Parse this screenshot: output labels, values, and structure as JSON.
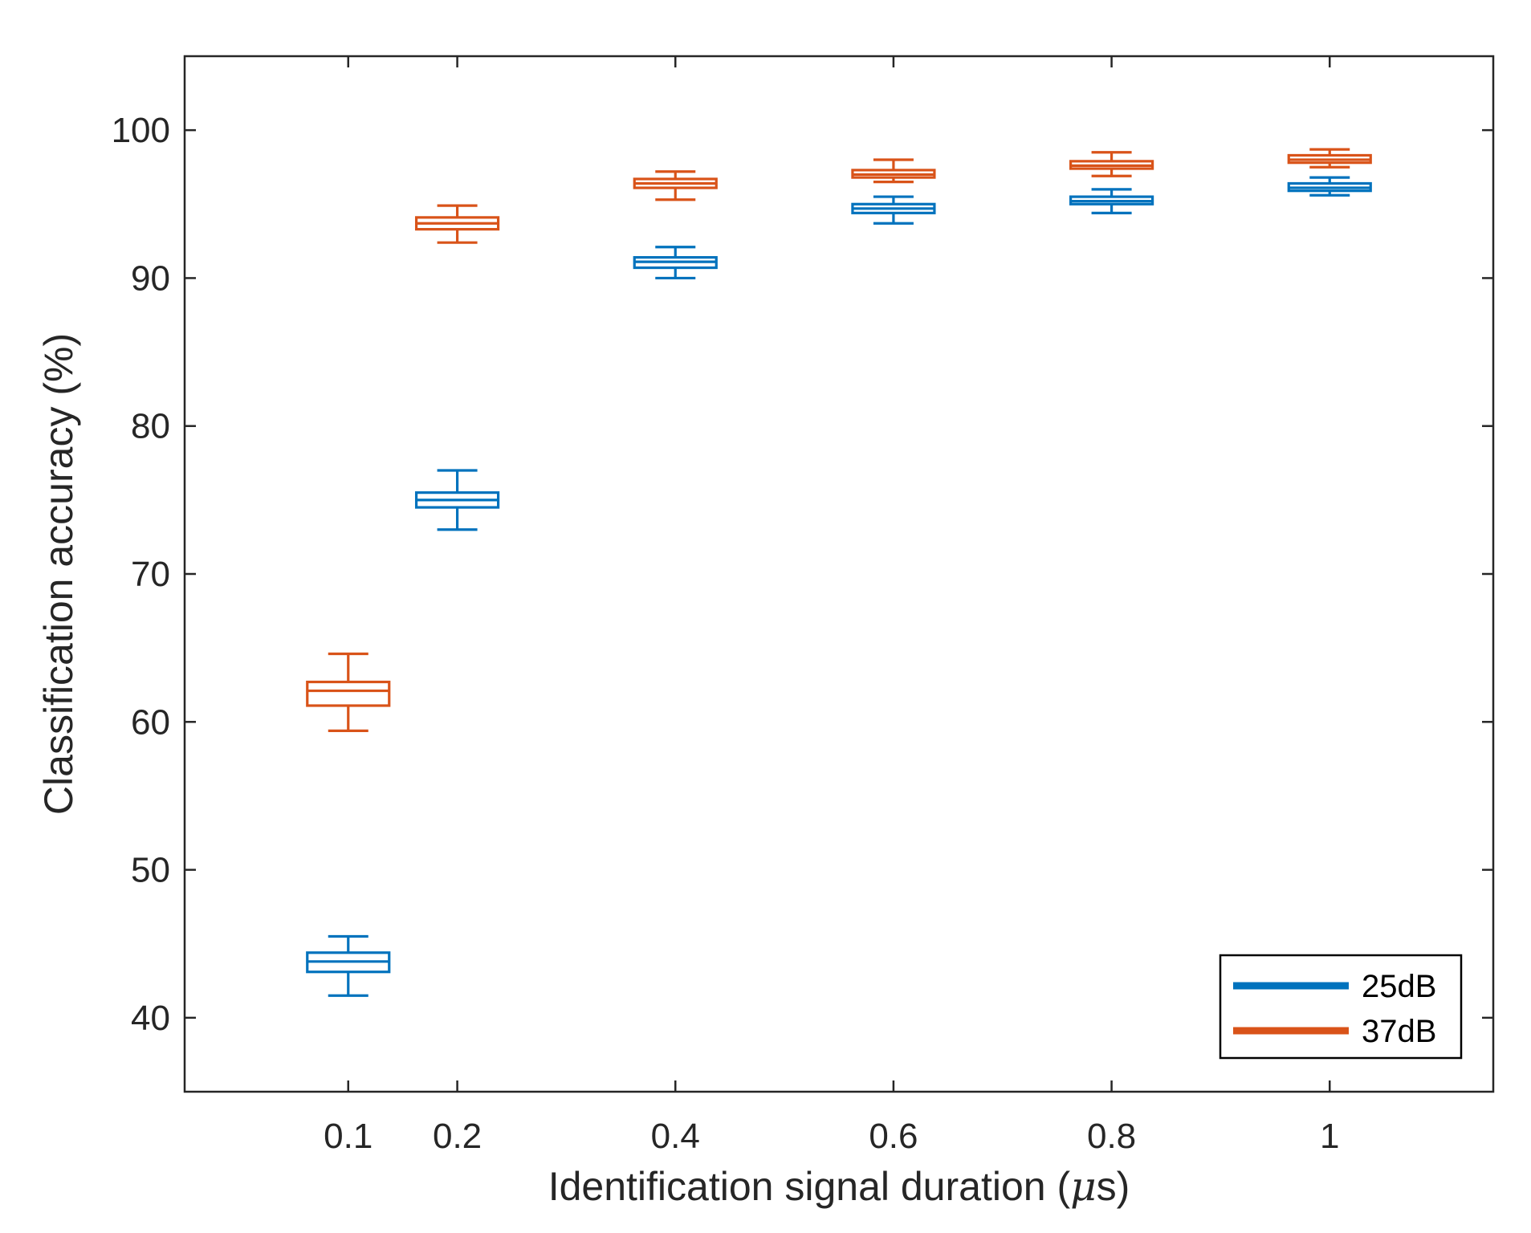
{
  "chart_data": {
    "type": "boxplot",
    "title": "",
    "xlabel": "Identification signal duration (",
    "xlabel_mu": "μ",
    "xlabel_tail": "s)",
    "ylabel": "Classification accuracy (%)",
    "xlim": [
      -0.05,
      1.15
    ],
    "ylim": [
      35,
      105
    ],
    "x": [
      0.1,
      0.2,
      0.4,
      0.6,
      0.8,
      1
    ],
    "xtick_labels": [
      "0.1",
      "0.2",
      "0.4",
      "0.6",
      "0.8",
      "1"
    ],
    "yticks": [
      40,
      50,
      60,
      70,
      80,
      90,
      100
    ],
    "ytick_labels": [
      "40",
      "50",
      "60",
      "70",
      "80",
      "90",
      "100"
    ],
    "legend_position": "bottom-right",
    "series": [
      {
        "name": "25dB",
        "color": "#0072BD",
        "boxes": [
          {
            "min": 41.5,
            "q1": 43.1,
            "median": 43.8,
            "q3": 44.4,
            "max": 45.5
          },
          {
            "min": 73.0,
            "q1": 74.5,
            "median": 75.0,
            "q3": 75.5,
            "max": 77.0
          },
          {
            "min": 90.0,
            "q1": 90.7,
            "median": 91.1,
            "q3": 91.4,
            "max": 92.1
          },
          {
            "min": 93.7,
            "q1": 94.4,
            "median": 94.7,
            "q3": 95.0,
            "max": 95.5
          },
          {
            "min": 94.4,
            "q1": 95.0,
            "median": 95.2,
            "q3": 95.5,
            "max": 96.0
          },
          {
            "min": 95.6,
            "q1": 95.9,
            "median": 96.1,
            "q3": 96.4,
            "max": 96.8
          }
        ]
      },
      {
        "name": "37dB",
        "color": "#D95319",
        "boxes": [
          {
            "min": 59.4,
            "q1": 61.1,
            "median": 62.1,
            "q3": 62.7,
            "max": 64.6
          },
          {
            "min": 92.4,
            "q1": 93.3,
            "median": 93.7,
            "q3": 94.1,
            "max": 94.9
          },
          {
            "min": 95.3,
            "q1": 96.1,
            "median": 96.4,
            "q3": 96.7,
            "max": 97.2
          },
          {
            "min": 96.5,
            "q1": 96.8,
            "median": 97.0,
            "q3": 97.3,
            "max": 98.0
          },
          {
            "min": 96.9,
            "q1": 97.4,
            "median": 97.6,
            "q3": 97.9,
            "max": 98.5
          },
          {
            "min": 97.5,
            "q1": 97.8,
            "median": 98.0,
            "q3": 98.3,
            "max": 98.7
          }
        ]
      }
    ]
  }
}
